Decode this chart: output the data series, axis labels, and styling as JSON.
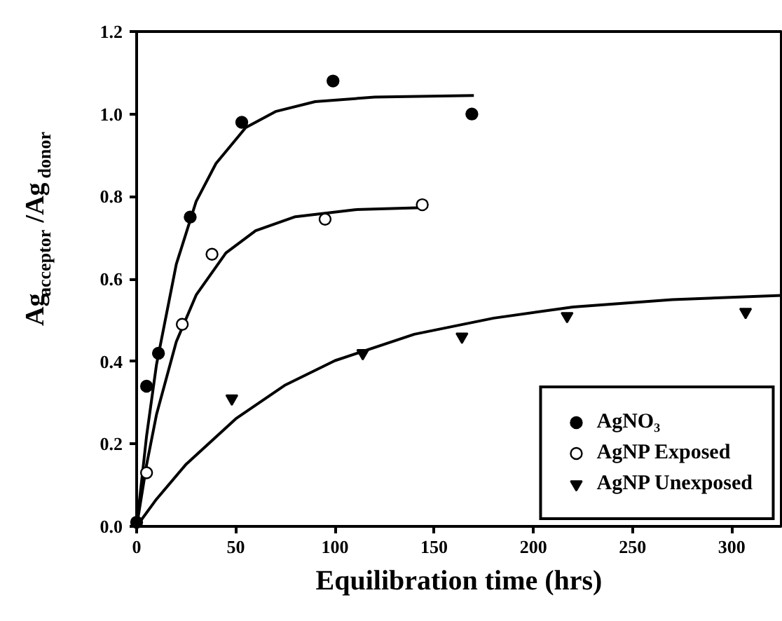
{
  "chart_data": {
    "type": "scatter",
    "xlabel": "Equilibration time (hrs)",
    "ylabel": "Ag$_{acceptor}$/Ag$_{donor}$",
    "xlim": [
      0,
      325
    ],
    "ylim": [
      0,
      1.2
    ],
    "xticks": [
      0,
      50,
      100,
      150,
      200,
      250,
      300
    ],
    "yticks": [
      {
        "value": 0,
        "label": "0.0"
      },
      0.2,
      0.4,
      0.6,
      0.8,
      {
        "value": 1,
        "label": "1.0"
      },
      1.2
    ],
    "grid": false,
    "legend": "bottom right",
    "series": [
      {
        "name": "AgNO₃",
        "color": "#000000",
        "marker": "circle",
        "x": [
          0,
          5,
          11,
          27,
          53,
          99,
          169
        ],
        "values": [
          0.01,
          0.34,
          0.42,
          0.75,
          0.98,
          1.08,
          1.0
        ]
      },
      {
        "name": "AgNP Exposed",
        "color": "#000000",
        "marker": "circle_open",
        "x": [
          5,
          23,
          38,
          95,
          144
        ],
        "values": [
          0.13,
          0.49,
          0.66,
          0.745,
          0.78
        ]
      },
      {
        "name": "AgNP Unexposed",
        "color": "#000000",
        "marker": "triangle",
        "x": [
          48,
          114,
          164,
          217,
          307
        ],
        "values": [
          0.31,
          0.42,
          0.46,
          0.51,
          0.52
        ]
      },
      {
        "type": "line",
        "color": "#000000",
        "x": [
          0,
          5,
          10,
          20,
          30,
          40,
          55,
          70,
          90,
          120,
          170
        ],
        "values": [
          0,
          0.219,
          0.392,
          0.636,
          0.788,
          0.88,
          0.967,
          1.006,
          1.03,
          1.041,
          1.045
        ]
      },
      {
        "type": "line",
        "color": "#000000",
        "x": [
          0,
          5,
          10,
          20,
          30,
          45,
          60,
          80,
          110,
          144
        ],
        "values": [
          0,
          0.149,
          0.271,
          0.448,
          0.561,
          0.663,
          0.717,
          0.751,
          0.768,
          0.773
        ]
      },
      {
        "type": "line",
        "color": "#000000",
        "x": [
          0,
          10,
          25,
          50,
          75,
          100,
          140,
          180,
          220,
          270,
          325
        ],
        "values": [
          0,
          0.066,
          0.151,
          0.261,
          0.343,
          0.402,
          0.466,
          0.505,
          0.532,
          0.55,
          0.56
        ]
      }
    ]
  }
}
